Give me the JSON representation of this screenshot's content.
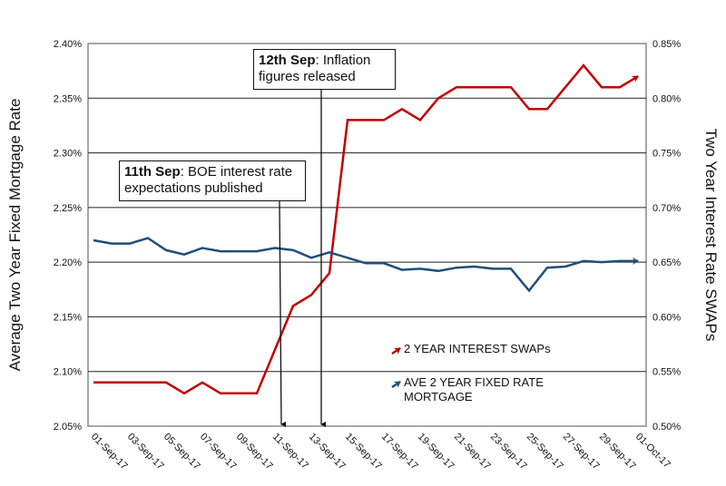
{
  "chart_data": {
    "type": "line",
    "xlabel": "",
    "ylabel_left": "Average Two Year Fixed Mortgage Rate",
    "ylabel_right": "Two Year Interest Rate SWAPs",
    "ylim_left": [
      2.05,
      2.4
    ],
    "ylim_right": [
      0.5,
      0.85
    ],
    "yticks_left": [
      "2.05%",
      "2.10%",
      "2.15%",
      "2.20%",
      "2.25%",
      "2.30%",
      "2.35%",
      "2.40%"
    ],
    "yticks_right": [
      "0.50%",
      "0.55%",
      "0.60%",
      "0.65%",
      "0.70%",
      "0.75%",
      "0.80%",
      "0.85%"
    ],
    "x": [
      "01-Sep-17",
      "02-Sep-17",
      "03-Sep-17",
      "04-Sep-17",
      "05-Sep-17",
      "06-Sep-17",
      "07-Sep-17",
      "08-Sep-17",
      "09-Sep-17",
      "10-Sep-17",
      "11-Sep-17",
      "12-Sep-17",
      "13-Sep-17",
      "14-Sep-17",
      "15-Sep-17",
      "16-Sep-17",
      "17-Sep-17",
      "18-Sep-17",
      "19-Sep-17",
      "20-Sep-17",
      "21-Sep-17",
      "22-Sep-17",
      "23-Sep-17",
      "24-Sep-17",
      "25-Sep-17",
      "26-Sep-17",
      "27-Sep-17",
      "28-Sep-17",
      "29-Sep-17",
      "30-Sep-17",
      "01-Oct-17"
    ],
    "xtick_labels": [
      "01-Sep-17",
      "03-Sep-17",
      "05-Sep-17",
      "07-Sep-17",
      "09-Sep-17",
      "11-Sep-17",
      "13-Sep-17",
      "15-Sep-17",
      "17-Sep-17",
      "19-Sep-17",
      "21-Sep-17",
      "23-Sep-17",
      "25-Sep-17",
      "27-Sep-17",
      "29-Sep-17",
      "01-Oct-17"
    ],
    "grid": true,
    "legend_placement": "lower-right",
    "series": [
      {
        "name": "2 YEAR INTEREST SWAPs",
        "axis": "right",
        "color": "#c00000",
        "values": [
          0.54,
          0.54,
          0.54,
          0.54,
          0.54,
          0.53,
          0.54,
          0.53,
          0.53,
          0.53,
          0.57,
          0.61,
          0.62,
          0.64,
          0.78,
          0.78,
          0.78,
          0.79,
          0.78,
          0.8,
          0.81,
          0.81,
          0.81,
          0.81,
          0.79,
          0.79,
          0.81,
          0.83,
          0.81,
          0.81,
          0.82
        ]
      },
      {
        "name": "AVE 2 YEAR FIXED RATE MORTGAGE",
        "axis": "left",
        "color": "#1f4e79",
        "values": [
          2.22,
          2.217,
          2.217,
          2.222,
          2.211,
          2.207,
          2.213,
          2.21,
          2.21,
          2.21,
          2.213,
          2.211,
          2.204,
          2.209,
          2.204,
          2.199,
          2.199,
          2.193,
          2.194,
          2.192,
          2.195,
          2.196,
          2.194,
          2.194,
          2.174,
          2.195,
          2.196,
          2.201,
          2.2,
          2.201,
          2.201
        ]
      }
    ],
    "annotations": [
      {
        "bold": "11th Sep",
        "text": ": BOE interest rate expectations published",
        "date": "11-Sep-17"
      },
      {
        "bold": "12th Sep",
        "text": ": Inflation figures released",
        "date": "13-Sep-17"
      }
    ]
  }
}
